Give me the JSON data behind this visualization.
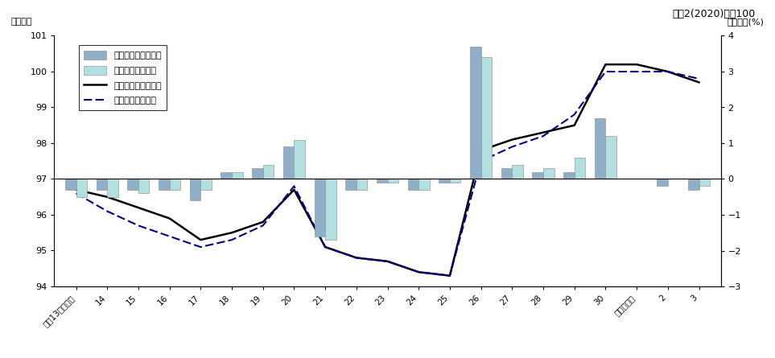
{
  "title_top_right": "令和2(2020)年＝100",
  "ylabel_left": "総合指数",
  "ylabel_right": "前年度比(%)",
  "xlabels": [
    "平成13年度平均",
    "14",
    "15",
    "16",
    "17",
    "18",
    "19",
    "20",
    "21",
    "22",
    "23",
    "24",
    "25",
    "26",
    "27",
    "28",
    "29",
    "30",
    "令和元年度",
    "2",
    "3"
  ],
  "x_indices": [
    0,
    1,
    2,
    3,
    4,
    5,
    6,
    7,
    8,
    9,
    10,
    11,
    12,
    13,
    14,
    15,
    16,
    17,
    18,
    19,
    20
  ],
  "takamatsu_index": [
    96.7,
    96.5,
    96.2,
    95.9,
    95.3,
    95.5,
    95.8,
    96.7,
    95.1,
    94.8,
    94.7,
    94.4,
    94.3,
    97.8,
    98.1,
    98.3,
    98.5,
    100.2,
    100.2,
    100.0,
    99.7
  ],
  "zenkoku_index": [
    96.6,
    96.1,
    95.7,
    95.4,
    95.1,
    95.3,
    95.7,
    96.8,
    95.1,
    94.8,
    94.7,
    94.4,
    94.3,
    97.5,
    97.9,
    98.2,
    98.8,
    100.0,
    100.0,
    100.0,
    99.8
  ],
  "takamatsu_yoy": [
    -0.3,
    -0.3,
    -0.3,
    -0.3,
    -0.6,
    0.2,
    0.3,
    0.9,
    -1.6,
    -0.3,
    -0.1,
    -0.3,
    -0.1,
    3.7,
    0.3,
    0.2,
    0.2,
    1.7,
    0.0,
    -0.2,
    -0.3
  ],
  "zenkoku_yoy": [
    -0.5,
    -0.5,
    -0.4,
    -0.3,
    -0.3,
    0.2,
    0.4,
    1.1,
    -1.7,
    -0.3,
    -0.1,
    -0.3,
    -0.1,
    3.4,
    0.4,
    0.3,
    0.6,
    1.2,
    0.0,
    0.0,
    -0.2
  ],
  "bar_width": 0.35,
  "bar_color_takamatsu": "#8fafc8",
  "bar_color_zenkoku": "#b2e0e0",
  "line_color_takamatsu": "#000000",
  "line_color_zenkoku": "#00008b",
  "ylim_left": [
    94,
    101
  ],
  "ylim_right": [
    -3.0,
    4.0
  ],
  "yticks_left": [
    94,
    95,
    96,
    97,
    98,
    99,
    100,
    101
  ],
  "yticks_right": [
    -3.0,
    -2.0,
    -1.0,
    0.0,
    1.0,
    2.0,
    3.0,
    4.0
  ],
  "legend_labels": [
    "高松市（前年度比）",
    "全国（前年度比）",
    "高松市（総合指数）",
    "全国（総合指数）"
  ]
}
